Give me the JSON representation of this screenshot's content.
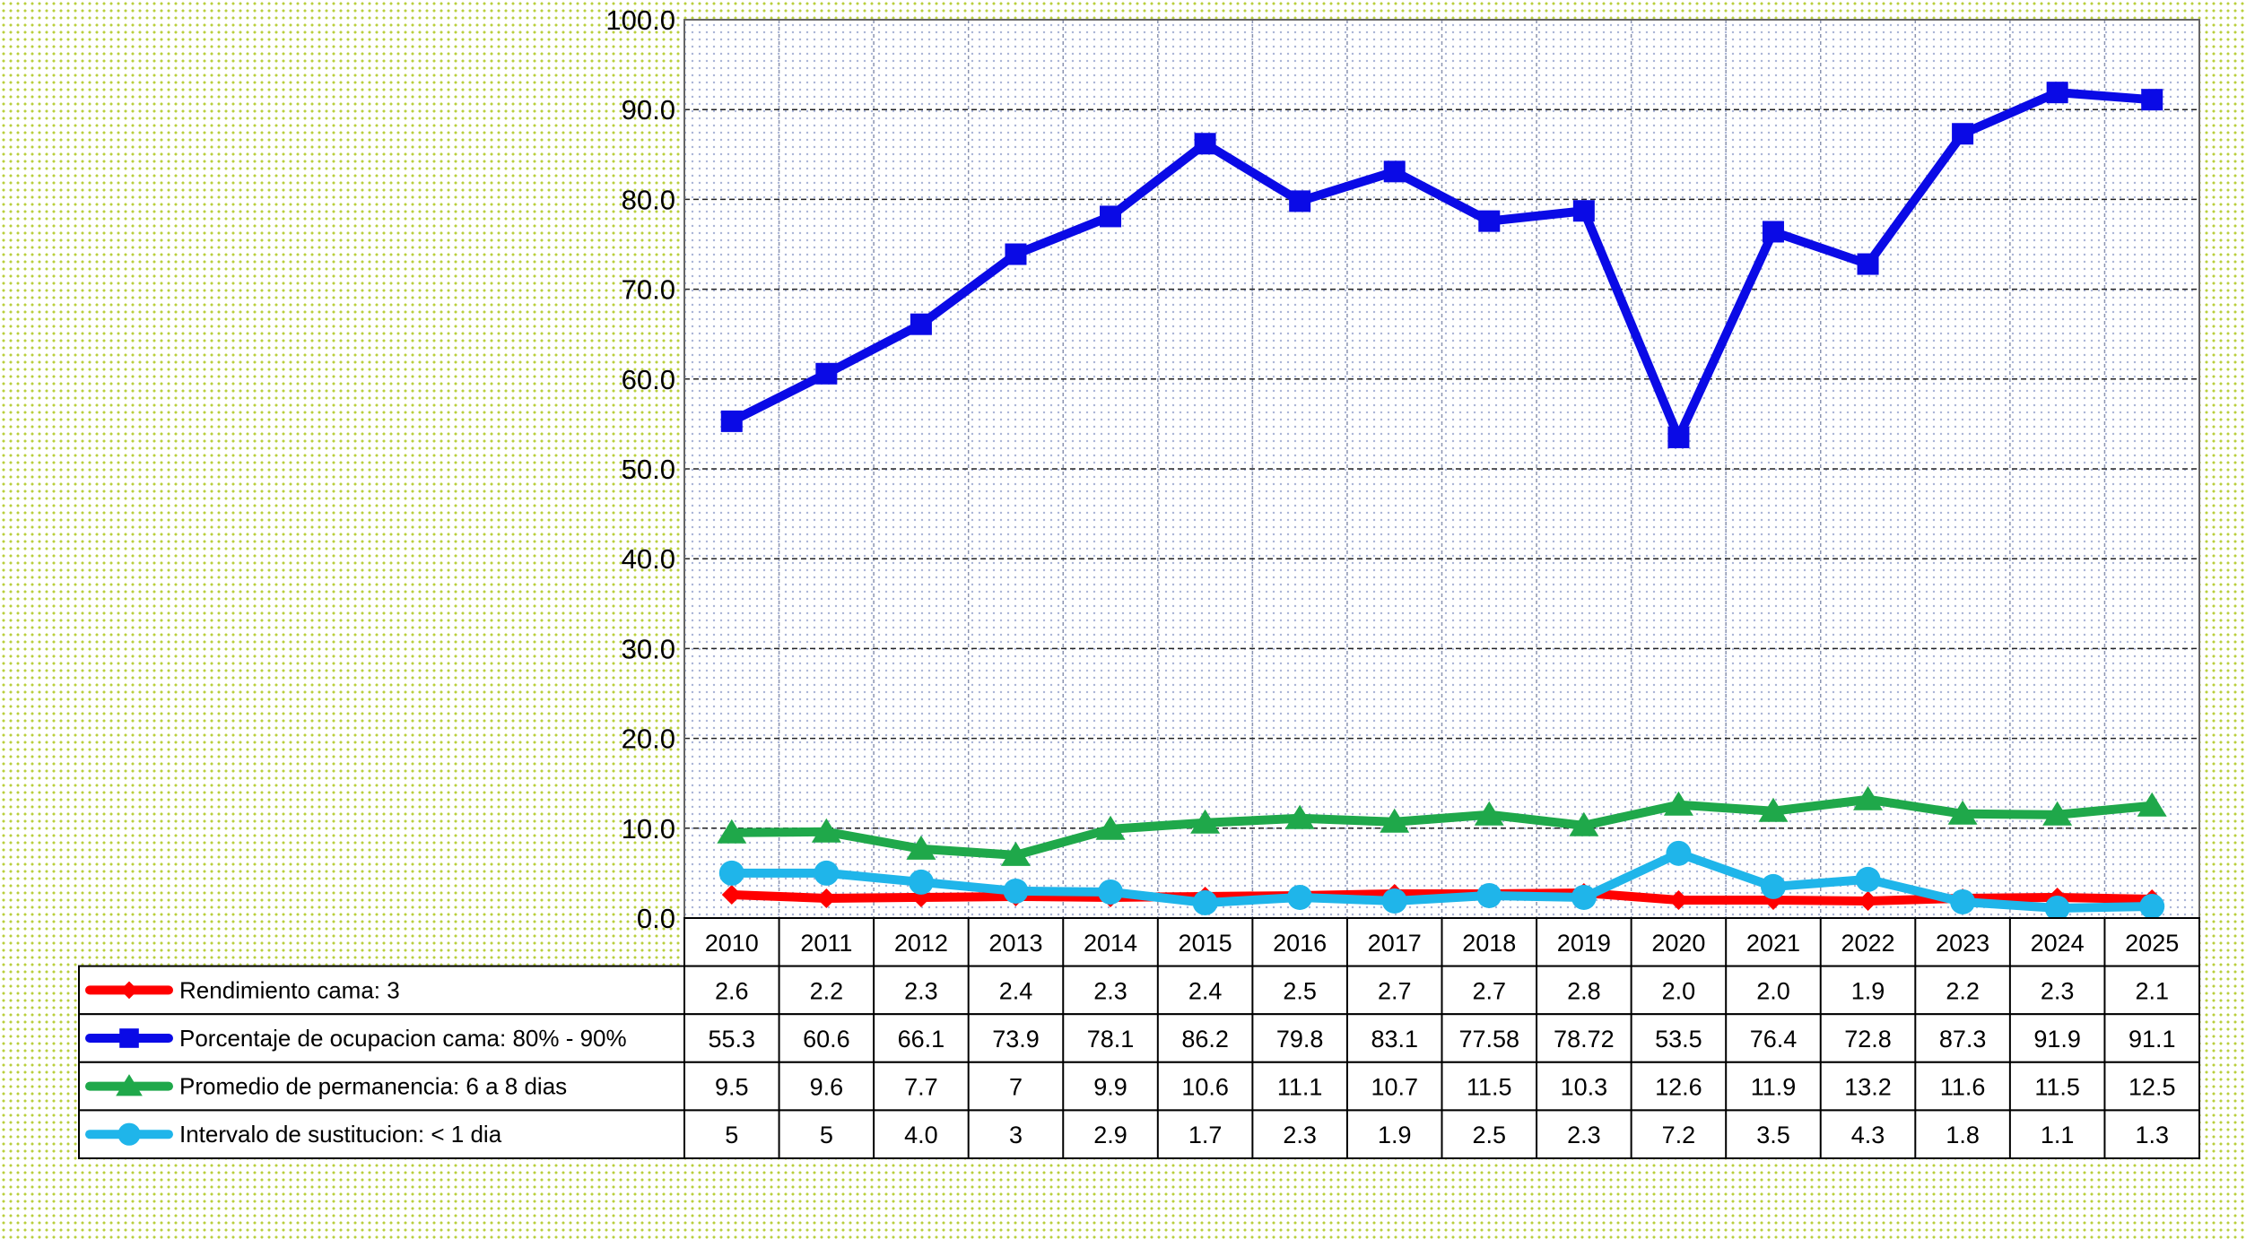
{
  "chart_data": {
    "type": "line",
    "categories": [
      "2010",
      "2011",
      "2012",
      "2013",
      "2014",
      "2015",
      "2016",
      "2017",
      "2018",
      "2019",
      "2020",
      "2021",
      "2022",
      "2023",
      "2024",
      "2025"
    ],
    "ylim": [
      0,
      100
    ],
    "yticks": [
      "0.0",
      "10.0",
      "20.0",
      "30.0",
      "40.0",
      "50.0",
      "60.0",
      "70.0",
      "80.0",
      "90.0",
      "100.0"
    ],
    "grid": true,
    "legend_placement": "data-table",
    "series": [
      {
        "name": "Rendimiento cama: 3",
        "color": "#ff0000",
        "marker": "diamond",
        "values": [
          2.6,
          2.2,
          2.3,
          2.4,
          2.3,
          2.4,
          2.5,
          2.7,
          2.7,
          2.8,
          2.0,
          2.0,
          1.9,
          2.2,
          2.3,
          2.1
        ],
        "labels": [
          "2.6",
          "2.2",
          "2.3",
          "2.4",
          "2.3",
          "2.4",
          "2.5",
          "2.7",
          "2.7",
          "2.8",
          "2.0",
          "2.0",
          "1.9",
          "2.2",
          "2.3",
          "2.1"
        ]
      },
      {
        "name": "Porcentaje de ocupacion cama: 80% - 90%",
        "color": "#0a0ae6",
        "marker": "square",
        "values": [
          55.3,
          60.6,
          66.1,
          73.9,
          78.1,
          86.2,
          79.8,
          83.1,
          77.58,
          78.72,
          53.5,
          76.4,
          72.8,
          87.3,
          91.9,
          91.1
        ],
        "labels": [
          "55.3",
          "60.6",
          "66.1",
          "73.9",
          "78.1",
          "86.2",
          "79.8",
          "83.1",
          "77.58",
          "78.72",
          "53.5",
          "76.4",
          "72.8",
          "87.3",
          "91.9",
          "91.1"
        ]
      },
      {
        "name": "Promedio de permanencia: 6 a 8 dias",
        "color": "#1fa84a",
        "marker": "triangle",
        "values": [
          9.5,
          9.6,
          7.7,
          7,
          9.9,
          10.6,
          11.1,
          10.7,
          11.5,
          10.3,
          12.6,
          11.9,
          13.2,
          11.6,
          11.5,
          12.5
        ],
        "labels": [
          "9.5",
          "9.6",
          "7.7",
          "7",
          "9.9",
          "10.6",
          "11.1",
          "10.7",
          "11.5",
          "10.3",
          "12.6",
          "11.9",
          "13.2",
          "11.6",
          "11.5",
          "12.5"
        ]
      },
      {
        "name": "Intervalo de sustitucion: < 1 dia",
        "color": "#1fb5ea",
        "marker": "circle",
        "values": [
          5,
          5,
          4.0,
          3,
          2.9,
          1.7,
          2.3,
          1.9,
          2.5,
          2.3,
          7.2,
          3.5,
          4.3,
          1.8,
          1.1,
          1.3
        ],
        "labels": [
          "5",
          "5",
          "4.0",
          "3",
          "2.9",
          "1.7",
          "2.3",
          "1.9",
          "2.5",
          "2.3",
          "7.2",
          "3.5",
          "4.3",
          "1.8",
          "1.1",
          "1.3"
        ]
      }
    ]
  }
}
